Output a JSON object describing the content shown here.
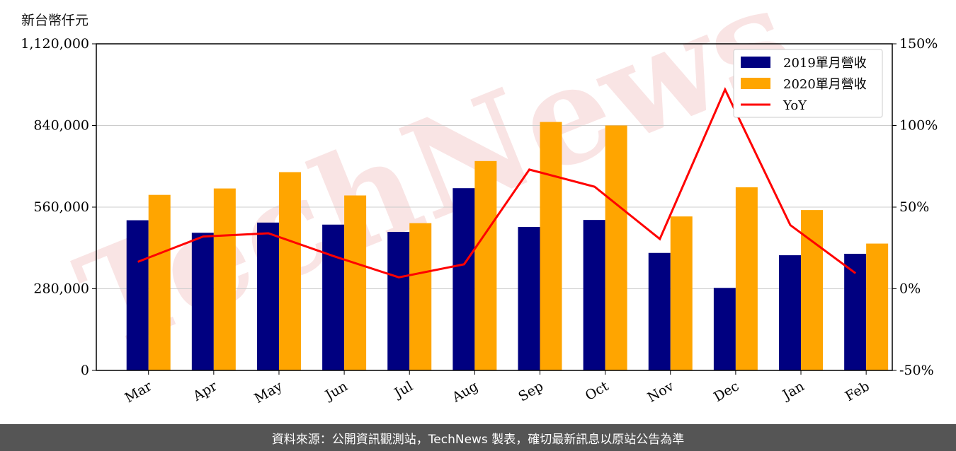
{
  "unit_label": "新台幣仟元",
  "source_note": "資料來源：公開資訊觀測站，TechNews 製表，確切最新訊息以原站公告為準",
  "watermark": "TechNews",
  "colors": {
    "series2019": "#000080",
    "series2020": "#FFA500",
    "yoy": "#FF0000",
    "watermark": "#f2c4c4"
  },
  "chart_data": {
    "type": "bar",
    "categories": [
      "Mar",
      "Apr",
      "May",
      "Jun",
      "Jul",
      "Aug",
      "Sep",
      "Oct",
      "Nov",
      "Dec",
      "Jan",
      "Feb"
    ],
    "series": [
      {
        "name": "2019單月營收",
        "type": "bar",
        "values": [
          515000,
          472000,
          507000,
          500000,
          475000,
          625000,
          492000,
          516000,
          403000,
          283000,
          395000,
          400000
        ]
      },
      {
        "name": "2020單月營收",
        "type": "bar",
        "values": [
          602000,
          624000,
          680000,
          600000,
          505000,
          718000,
          852000,
          840000,
          528000,
          628000,
          550000,
          435000
        ]
      },
      {
        "name": "YoY",
        "type": "line",
        "axis": "right",
        "values": [
          16.5,
          32,
          34,
          20,
          7,
          15,
          73,
          62.5,
          30.5,
          122,
          39,
          9.5
        ]
      }
    ],
    "ylim": [
      0,
      1120000
    ],
    "yticks": [
      "0",
      "280,000",
      "560,000",
      "840,000",
      "1,120,000"
    ],
    "y2lim": [
      -50,
      150
    ],
    "y2ticks": [
      "-50%",
      "0%",
      "50%",
      "100%",
      "150%"
    ],
    "grid": "horizontal",
    "legend_position": "top-right"
  }
}
